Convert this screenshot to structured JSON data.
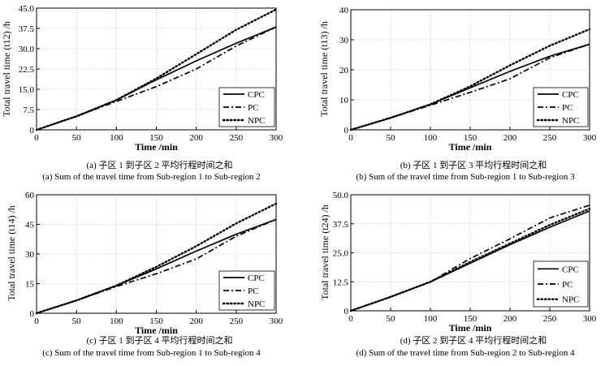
{
  "chart_data": [
    {
      "type": "line",
      "panel_label": "(a)",
      "caption_cn": "(a)  子区 1 到子区 2 平均行程时间之和",
      "caption_en": "(a)  Sum of the travel time from Sub-region 1 to Sub-region 2",
      "xlabel": "Time /min",
      "ylabel": "Total travel time (t12) /h",
      "xlim": [
        0,
        300
      ],
      "ylim": [
        0,
        45
      ],
      "xticks": [
        0,
        50,
        100,
        150,
        200,
        250,
        300
      ],
      "yticks": [
        "0",
        "7.5",
        "15.0",
        "22.5",
        "30.0",
        "37.5",
        "45.0"
      ],
      "grid": true,
      "legend_position": "bottom-right",
      "x": [
        0,
        50,
        100,
        150,
        200,
        250,
        300
      ],
      "series": [
        {
          "name": "CPC",
          "values": [
            0,
            5,
            11,
            18.5,
            25.5,
            32,
            38
          ]
        },
        {
          "name": "PC",
          "values": [
            0,
            5,
            10.5,
            16,
            22.5,
            31,
            38
          ]
        },
        {
          "name": "NPC",
          "values": [
            0,
            5,
            11,
            19,
            28,
            37,
            44.5
          ]
        }
      ]
    },
    {
      "type": "line",
      "panel_label": "(b)",
      "caption_cn": "(b)  子区 1 到子区 3 平均行程时间之和",
      "caption_en": "(b)  Sum of the travel time from Sub-region 1 to Sub-region 3",
      "xlabel": "Time /min",
      "ylabel": "Total travel time (t13) /h",
      "xlim": [
        0,
        300
      ],
      "ylim": [
        0,
        40
      ],
      "xticks": [
        0,
        50,
        100,
        150,
        200,
        250,
        300
      ],
      "yticks": [
        "0",
        "10",
        "20",
        "30",
        "40"
      ],
      "grid": true,
      "legend_position": "bottom-right",
      "x": [
        0,
        50,
        100,
        150,
        200,
        250,
        300
      ],
      "series": [
        {
          "name": "CPC",
          "values": [
            0,
            4,
            8.5,
            14,
            19.5,
            24.5,
            28.5
          ]
        },
        {
          "name": "PC",
          "values": [
            0,
            4,
            8.2,
            12.5,
            17,
            24,
            28.5
          ]
        },
        {
          "name": "NPC",
          "values": [
            0,
            4,
            8.5,
            14.5,
            21.5,
            28,
            33.5
          ]
        }
      ]
    },
    {
      "type": "line",
      "panel_label": "(c)",
      "caption_cn": "(c)  子区 1 到子区 4 平均行程时间之和",
      "caption_en": "(c)  Sum of the travel time from Sub-region 1 to Sub-region 4",
      "xlabel": "Time /min",
      "ylabel": "Total travel time (t14) /h",
      "xlim": [
        0,
        300
      ],
      "ylim": [
        0,
        60
      ],
      "xticks": [
        0,
        50,
        100,
        150,
        200,
        250,
        300
      ],
      "yticks": [
        "0",
        "15",
        "30",
        "45",
        "60"
      ],
      "grid": true,
      "legend_position": "bottom-right",
      "x": [
        0,
        50,
        100,
        150,
        200,
        250,
        300
      ],
      "series": [
        {
          "name": "CPC",
          "values": [
            0,
            6.5,
            14,
            22.5,
            31.5,
            40,
            47.5
          ]
        },
        {
          "name": "PC",
          "values": [
            0,
            6.5,
            13.5,
            20,
            27.5,
            39,
            47.5
          ]
        },
        {
          "name": "NPC",
          "values": [
            0,
            6.5,
            14,
            23.5,
            34,
            45.5,
            55.5
          ]
        }
      ]
    },
    {
      "type": "line",
      "panel_label": "(d)",
      "caption_cn": "(d)  子区 2 到子区 4 平均行程时间之和",
      "caption_en": "(d)  Sum of the travel time from Sub-region 2 to Sub-region 4",
      "xlabel": "Time /min",
      "ylabel": "Total travel time (t24) /h",
      "xlim": [
        0,
        300
      ],
      "ylim": [
        0,
        50
      ],
      "xticks": [
        0,
        50,
        100,
        150,
        200,
        250,
        300
      ],
      "yticks": [
        "0",
        "12.5",
        "25.0",
        "37.5",
        "50.0"
      ],
      "grid": true,
      "legend_position": "bottom-right",
      "x": [
        0,
        50,
        100,
        150,
        200,
        250,
        300
      ],
      "series": [
        {
          "name": "CPC",
          "values": [
            0,
            6,
            12.5,
            20.5,
            28.5,
            36,
            43
          ]
        },
        {
          "name": "PC",
          "values": [
            0,
            6,
            12.5,
            22.5,
            31,
            40,
            45.5
          ]
        },
        {
          "name": "NPC",
          "values": [
            0,
            6,
            12.5,
            21,
            29,
            37,
            44
          ]
        }
      ]
    }
  ],
  "legend_labels": [
    "CPC",
    "PC",
    "NPC"
  ],
  "line_styles": {
    "CPC": "solid",
    "PC": "dash-dot",
    "NPC": "dotted"
  },
  "colors": {
    "line": "#000000",
    "grid": "#9a9a9a",
    "background": "#ffffff"
  }
}
